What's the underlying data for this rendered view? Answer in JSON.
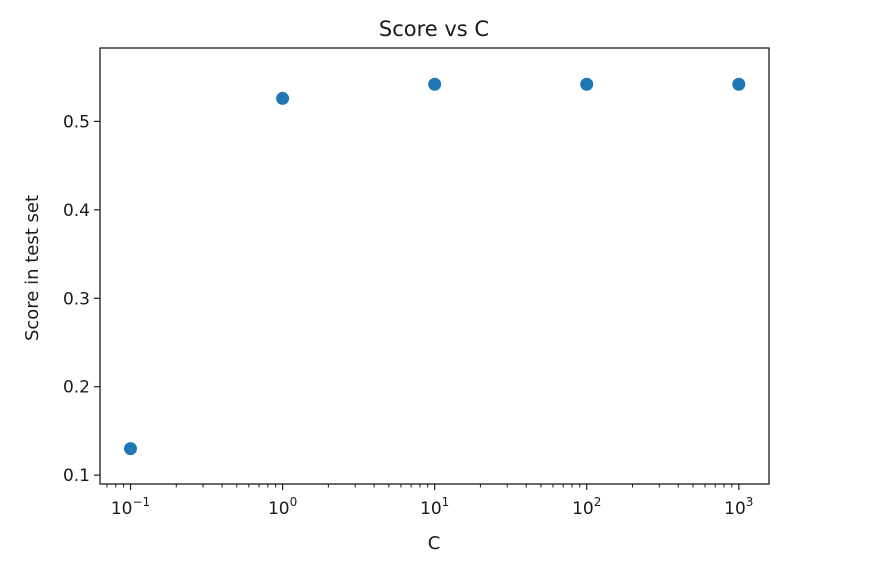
{
  "chart_data": {
    "type": "scatter",
    "title": "Score vs C",
    "xlabel": "C",
    "ylabel": "Score in test set",
    "x_scale": "log",
    "x": [
      0.1,
      1,
      10,
      100,
      1000
    ],
    "y": [
      0.13,
      0.526,
      0.542,
      0.542,
      0.542
    ],
    "xlim": [
      0.063,
      1580
    ],
    "ylim": [
      0.09,
      0.583
    ],
    "x_ticks": [
      {
        "value": 0.1,
        "base": "10",
        "exp": "−1"
      },
      {
        "value": 1,
        "base": "10",
        "exp": "0"
      },
      {
        "value": 10,
        "base": "10",
        "exp": "1"
      },
      {
        "value": 100,
        "base": "10",
        "exp": "2"
      },
      {
        "value": 1000,
        "base": "10",
        "exp": "3"
      }
    ],
    "y_ticks": [
      {
        "value": 0.1,
        "label": "0.1"
      },
      {
        "value": 0.2,
        "label": "0.2"
      },
      {
        "value": 0.3,
        "label": "0.3"
      },
      {
        "value": 0.4,
        "label": "0.4"
      },
      {
        "value": 0.5,
        "label": "0.5"
      }
    ],
    "grid": false,
    "marker_color": "#1f77b4"
  }
}
